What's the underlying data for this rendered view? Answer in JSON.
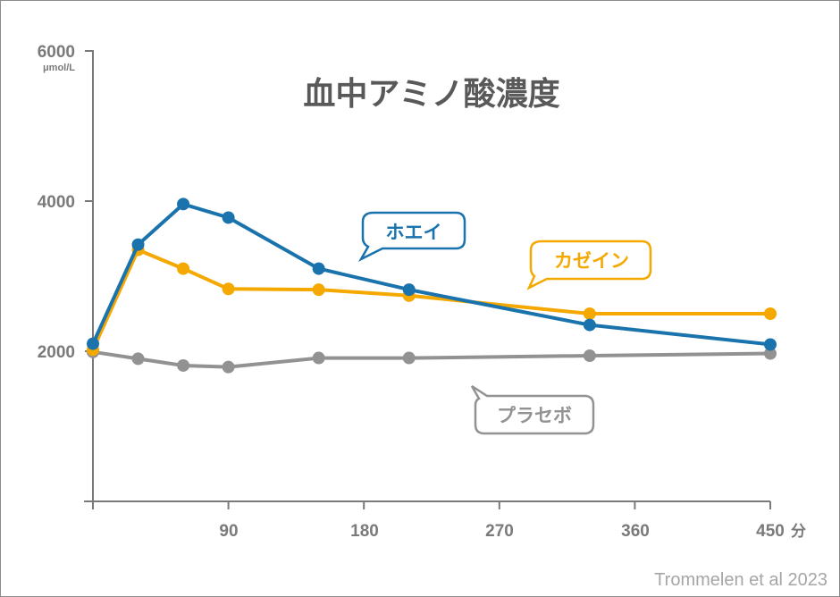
{
  "chart_data": {
    "type": "line",
    "title": "血中アミノ酸濃度",
    "ylabel": "μmol/L",
    "xunit": "分",
    "credit": "Trommelen et al 2023",
    "ylim": [
      0,
      6000
    ],
    "xlim": [
      0,
      450
    ],
    "yticks": [
      "6000",
      "4000",
      "2000"
    ],
    "xticks": [
      "90",
      "180",
      "270",
      "360",
      "450"
    ],
    "grid": false,
    "series": [
      {
        "name": "ホエイ",
        "color": "#1a73ad",
        "x": [
          0,
          30,
          60,
          90,
          150,
          210,
          330,
          450
        ],
        "y": [
          2100,
          3420,
          3960,
          3780,
          3100,
          2820,
          2350,
          2090
        ]
      },
      {
        "name": "カゼイン",
        "color": "#f5a800",
        "x": [
          0,
          30,
          60,
          90,
          150,
          210,
          330,
          450
        ],
        "y": [
          2020,
          3350,
          3100,
          2830,
          2820,
          2740,
          2500,
          2500
        ]
      },
      {
        "name": "プラセボ",
        "color": "#929292",
        "x": [
          0,
          30,
          60,
          90,
          150,
          210,
          330,
          450
        ],
        "y": [
          1990,
          1900,
          1810,
          1790,
          1910,
          1910,
          1940,
          1970
        ]
      }
    ]
  }
}
